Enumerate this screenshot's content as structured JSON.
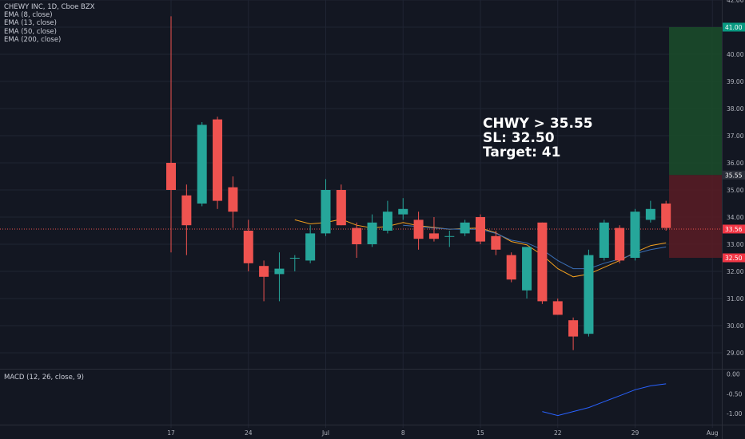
{
  "legend": {
    "title": "CHEWY INC, 1D, Cboe BZX",
    "indicators": [
      "EMA (8, close)",
      "EMA (13, close)",
      "EMA (50, close)",
      "EMA (200, close)"
    ]
  },
  "annotation": {
    "lines": [
      "CHWY > 35.55",
      "SL: 32.50",
      "Target: 41"
    ]
  },
  "macd_label": "MACD (12, 26, close, 9)",
  "colors": {
    "background": "#131722",
    "up": "#26a69a",
    "down": "#ef5350",
    "ema_fast": "#f4a11e",
    "ema_slow": "#3b6fb6",
    "macd_line": "#2962ff",
    "target_zone": "#1b4d2a",
    "stop_zone": "#5b1c24",
    "grid": "#1f2433",
    "axis_text": "#b2b5be"
  },
  "chart_data": {
    "type": "candlestick",
    "title": "CHEWY INC, 1D, Cboe BZX",
    "ylim": [
      28.5,
      42.0
    ],
    "y_ticks": [
      "29.00",
      "30.00",
      "31.00",
      "32.00",
      "33.00",
      "34.00",
      "35.00",
      "36.00",
      "37.00",
      "38.00",
      "39.00",
      "40.00",
      "41.00",
      "42.00"
    ],
    "x_ticks": [
      {
        "label": "17",
        "idx": 0
      },
      {
        "label": "24",
        "idx": 5
      },
      {
        "label": "Jul",
        "idx": 10
      },
      {
        "label": "8",
        "idx": 15
      },
      {
        "label": "15",
        "idx": 20
      },
      {
        "label": "22",
        "idx": 25
      },
      {
        "label": "29",
        "idx": 30
      },
      {
        "label": "Aug",
        "idx": 35
      }
    ],
    "candles": [
      {
        "o": 36.0,
        "h": 41.4,
        "l": 32.7,
        "c": 35.0
      },
      {
        "o": 34.8,
        "h": 35.2,
        "l": 32.6,
        "c": 33.7
      },
      {
        "o": 34.5,
        "h": 37.5,
        "l": 34.4,
        "c": 37.4
      },
      {
        "o": 37.6,
        "h": 37.7,
        "l": 34.3,
        "c": 34.6
      },
      {
        "o": 35.1,
        "h": 35.5,
        "l": 33.6,
        "c": 34.2
      },
      {
        "o": 33.5,
        "h": 33.9,
        "l": 32.0,
        "c": 32.3
      },
      {
        "o": 32.2,
        "h": 32.4,
        "l": 30.9,
        "c": 31.8
      },
      {
        "o": 31.9,
        "h": 32.7,
        "l": 30.9,
        "c": 32.1
      },
      {
        "o": 32.5,
        "h": 32.6,
        "l": 32.0,
        "c": 32.5
      },
      {
        "o": 32.4,
        "h": 33.7,
        "l": 32.3,
        "c": 33.4
      },
      {
        "o": 33.4,
        "h": 35.4,
        "l": 33.3,
        "c": 35.0
      },
      {
        "o": 35.0,
        "h": 35.2,
        "l": 33.7,
        "c": 33.7
      },
      {
        "o": 33.6,
        "h": 33.8,
        "l": 32.5,
        "c": 33.0
      },
      {
        "o": 33.0,
        "h": 34.1,
        "l": 32.9,
        "c": 33.8
      },
      {
        "o": 33.5,
        "h": 34.6,
        "l": 33.4,
        "c": 34.2
      },
      {
        "o": 34.1,
        "h": 34.7,
        "l": 33.9,
        "c": 34.3
      },
      {
        "o": 33.9,
        "h": 34.2,
        "l": 32.8,
        "c": 33.2
      },
      {
        "o": 33.4,
        "h": 34.0,
        "l": 33.1,
        "c": 33.2
      },
      {
        "o": 33.3,
        "h": 33.5,
        "l": 32.9,
        "c": 33.3
      },
      {
        "o": 33.4,
        "h": 33.9,
        "l": 33.3,
        "c": 33.8
      },
      {
        "o": 34.0,
        "h": 34.1,
        "l": 33.0,
        "c": 33.1
      },
      {
        "o": 33.3,
        "h": 33.5,
        "l": 32.6,
        "c": 32.8
      },
      {
        "o": 32.6,
        "h": 32.7,
        "l": 31.6,
        "c": 31.7
      },
      {
        "o": 31.3,
        "h": 32.9,
        "l": 31.0,
        "c": 32.9
      },
      {
        "o": 33.8,
        "h": 33.8,
        "l": 30.8,
        "c": 30.9
      },
      {
        "o": 30.9,
        "h": 31.0,
        "l": 30.4,
        "c": 30.4
      },
      {
        "o": 30.2,
        "h": 30.3,
        "l": 29.1,
        "c": 29.6
      },
      {
        "o": 29.7,
        "h": 32.8,
        "l": 29.6,
        "c": 32.6
      },
      {
        "o": 32.5,
        "h": 33.9,
        "l": 32.4,
        "c": 33.8
      },
      {
        "o": 33.6,
        "h": 33.7,
        "l": 32.3,
        "c": 32.4
      },
      {
        "o": 32.5,
        "h": 34.3,
        "l": 32.4,
        "c": 34.2
      },
      {
        "o": 33.9,
        "h": 34.6,
        "l": 33.8,
        "c": 34.3
      },
      {
        "o": 34.5,
        "h": 34.6,
        "l": 33.5,
        "c": 33.6
      }
    ],
    "series": [
      {
        "values": [
          null,
          null,
          null,
          null,
          null,
          null,
          null,
          null,
          33.9,
          33.75,
          33.8,
          33.92,
          33.7,
          33.6,
          33.66,
          33.8,
          33.68,
          33.62,
          33.55,
          33.58,
          33.6,
          33.42,
          33.1,
          32.98,
          32.6,
          32.1,
          31.8,
          31.9,
          32.15,
          32.4,
          32.7,
          32.95,
          33.05
        ]
      },
      {
        "values": [
          null,
          null,
          null,
          null,
          null,
          null,
          null,
          null,
          null,
          null,
          null,
          null,
          null,
          null,
          null,
          33.7,
          33.65,
          33.6,
          33.56,
          33.55,
          33.55,
          33.4,
          33.15,
          33.05,
          32.8,
          32.4,
          32.1,
          32.1,
          32.3,
          32.45,
          32.65,
          32.8,
          32.9
        ]
      }
    ],
    "price_labels": [
      {
        "value": 41.0,
        "text": "41.00",
        "color": "#089981"
      },
      {
        "value": 35.55,
        "text": "35.55",
        "color": "#2a2e39"
      },
      {
        "value": 33.56,
        "text": "33.56",
        "color": "#f23645"
      },
      {
        "value": 32.5,
        "text": "32.50",
        "color": "#f23645"
      }
    ],
    "last_price": 33.56,
    "position": {
      "entry": 35.55,
      "stop": 32.5,
      "target": 41.0
    },
    "macd": {
      "ylim": [
        -1.2,
        0.05
      ],
      "y_ticks": [
        "0.00",
        "-0.50",
        "-1.00"
      ],
      "start_idx": 24,
      "values": [
        -0.95,
        -1.05,
        -0.95,
        -0.85,
        -0.7,
        -0.55,
        -0.4,
        -0.3,
        -0.25
      ]
    }
  }
}
